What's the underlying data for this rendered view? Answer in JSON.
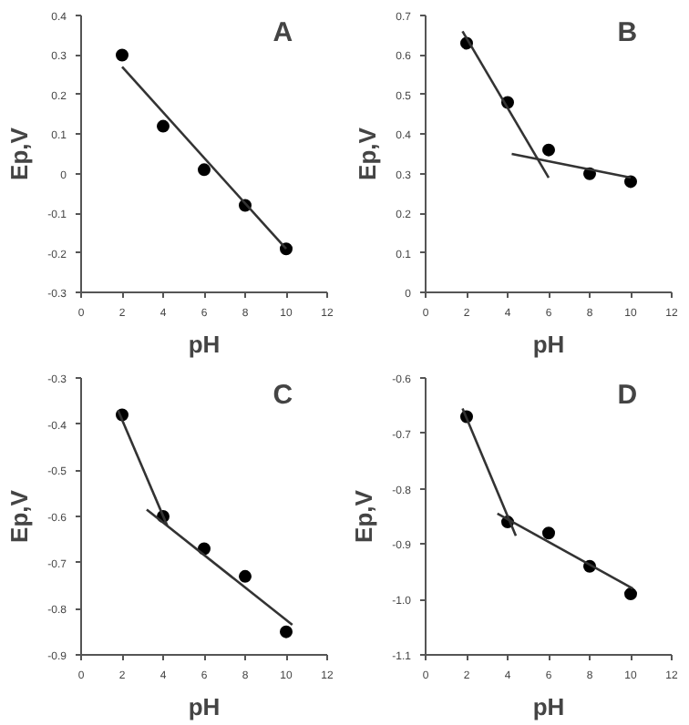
{
  "chart_data": [
    {
      "type": "scatter",
      "title": "A",
      "xlabel": "pH",
      "ylabel": "Ep,V",
      "xlim": [
        0,
        12
      ],
      "xticks": [
        0,
        2,
        4,
        6,
        8,
        10,
        12
      ],
      "ylim": [
        -0.3,
        0.4
      ],
      "yticks": [
        -0.3,
        -0.2,
        -0.1,
        0,
        0.1,
        0.2,
        0.3,
        0.4
      ],
      "grid": false,
      "x": [
        2,
        4,
        6,
        8,
        10
      ],
      "series": [
        {
          "color": "#000000",
          "values": [
            0.3,
            0.12,
            0.01,
            -0.08,
            -0.19
          ],
          "marker": "circle"
        },
        {
          "type": "line",
          "color": "#333333",
          "x": [
            2,
            10
          ],
          "values": [
            0.27,
            -0.19
          ],
          "marker": "none"
        }
      ]
    },
    {
      "type": "scatter",
      "title": "B",
      "xlabel": "pH",
      "ylabel": "Ep,V",
      "xlim": [
        0,
        12
      ],
      "xticks": [
        0,
        2,
        4,
        6,
        8,
        10,
        12
      ],
      "ylim": [
        0,
        0.7
      ],
      "yticks": [
        0,
        0.1,
        0.2,
        0.3,
        0.4,
        0.5,
        0.6,
        0.7
      ],
      "grid": false,
      "x": [
        2,
        4,
        6,
        8,
        10
      ],
      "series": [
        {
          "color": "#000000",
          "values": [
            0.63,
            0.48,
            0.36,
            0.3,
            0.28
          ],
          "marker": "circle"
        },
        {
          "type": "line",
          "color": "#333333",
          "x": [
            1.8,
            6
          ],
          "values": [
            0.66,
            0.29
          ],
          "marker": "none"
        },
        {
          "type": "line",
          "color": "#333333",
          "x": [
            4.2,
            10
          ],
          "values": [
            0.35,
            0.29
          ],
          "marker": "none"
        }
      ]
    },
    {
      "type": "scatter",
      "title": "C",
      "xlabel": "pH",
      "ylabel": "Ep,V",
      "xlim": [
        0,
        12
      ],
      "xticks": [
        0,
        2,
        4,
        6,
        8,
        10,
        12
      ],
      "ylim": [
        -0.9,
        -0.3
      ],
      "yticks": [
        -0.9,
        -0.8,
        -0.7,
        -0.6,
        -0.5,
        -0.4,
        -0.3
      ],
      "grid": false,
      "x": [
        2,
        4,
        6,
        8,
        10
      ],
      "series": [
        {
          "color": "#000000",
          "values": [
            -0.38,
            -0.6,
            -0.67,
            -0.73,
            -0.85
          ],
          "marker": "circle"
        },
        {
          "type": "line",
          "color": "#333333",
          "x": [
            1.8,
            4.2
          ],
          "values": [
            -0.37,
            -0.62
          ],
          "marker": "none"
        },
        {
          "type": "line",
          "color": "#333333",
          "x": [
            3.2,
            10.3
          ],
          "values": [
            -0.585,
            -0.835
          ],
          "marker": "none"
        }
      ]
    },
    {
      "type": "scatter",
      "title": "D",
      "xlabel": "pH",
      "ylabel": "Ep,V",
      "xlim": [
        0,
        12
      ],
      "xticks": [
        0,
        2,
        4,
        6,
        8,
        10,
        12
      ],
      "ylim": [
        -1.1,
        -0.6
      ],
      "yticks": [
        -1.1,
        {
          "value": -1.0,
          "label": "-1.0"
        },
        -0.9,
        -0.8,
        -0.7,
        -0.6
      ],
      "grid": false,
      "x": [
        2,
        4,
        6,
        8,
        10
      ],
      "series": [
        {
          "color": "#000000",
          "values": [
            -0.67,
            -0.86,
            -0.88,
            -0.94,
            -0.99
          ],
          "marker": "circle"
        },
        {
          "type": "line",
          "color": "#333333",
          "x": [
            1.8,
            4.4
          ],
          "values": [
            -0.655,
            -0.885
          ],
          "marker": "none"
        },
        {
          "type": "line",
          "color": "#333333",
          "x": [
            3.5,
            10.1
          ],
          "values": [
            -0.845,
            -0.98
          ],
          "marker": "none"
        }
      ]
    }
  ]
}
